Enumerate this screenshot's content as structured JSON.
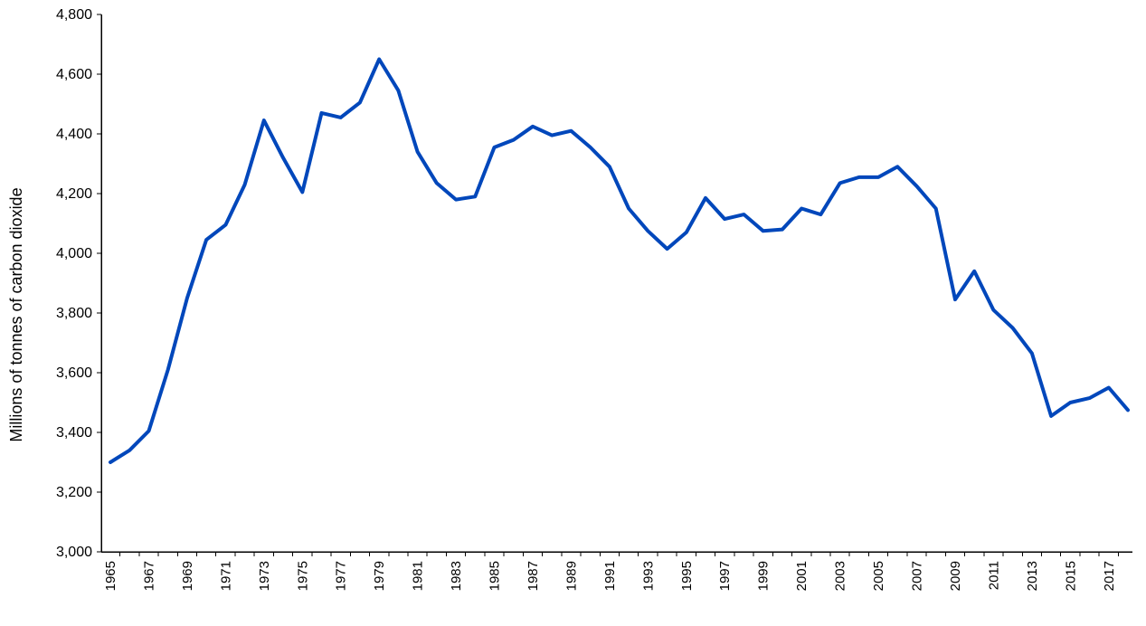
{
  "chart_data": {
    "type": "line",
    "title": "",
    "xlabel": "",
    "ylabel": "Millions of tonnes of carbon dioxide",
    "ylim": [
      3000,
      4800
    ],
    "yticks": [
      3000,
      3200,
      3400,
      3600,
      3800,
      4000,
      4200,
      4400,
      4600,
      4800
    ],
    "ytick_labels": [
      "3,000",
      "3,200",
      "3,400",
      "3,600",
      "3,800",
      "4,000",
      "4,200",
      "4,400",
      "4,600",
      "4,800"
    ],
    "xtick_labels": [
      "1965",
      "1967",
      "1969",
      "1971",
      "1973",
      "1975",
      "1977",
      "1979",
      "1981",
      "1983",
      "1985",
      "1987",
      "1989",
      "1991",
      "1993",
      "1995",
      "1997",
      "1999",
      "2001",
      "2003",
      "2005",
      "2007",
      "2009",
      "2011",
      "2013",
      "2015",
      "2017"
    ],
    "grid": false,
    "legend": "none",
    "line_color": "#0047BB",
    "x": [
      1965,
      1966,
      1967,
      1968,
      1969,
      1970,
      1971,
      1972,
      1973,
      1974,
      1975,
      1976,
      1977,
      1978,
      1979,
      1980,
      1981,
      1982,
      1983,
      1984,
      1985,
      1986,
      1987,
      1988,
      1989,
      1990,
      1991,
      1992,
      1993,
      1994,
      1995,
      1996,
      1997,
      1998,
      1999,
      2000,
      2001,
      2002,
      2003,
      2004,
      2005,
      2006,
      2007,
      2008,
      2009,
      2010,
      2011,
      2012,
      2013,
      2014,
      2015,
      2016,
      2017,
      2018
    ],
    "series": [
      {
        "values": [
          3300,
          3340,
          3405,
          3610,
          3850,
          4045,
          4095,
          4230,
          4445,
          4320,
          4205,
          4470,
          4455,
          4505,
          4650,
          4545,
          4340,
          4235,
          4180,
          4190,
          4355,
          4380,
          4425,
          4395,
          4410,
          4355,
          4290,
          4150,
          4075,
          4015,
          4070,
          4185,
          4115,
          4130,
          4075,
          4080,
          4150,
          4130,
          4235,
          4255,
          4255,
          4290,
          4225,
          4150,
          3845,
          3940,
          3810,
          3750,
          3665,
          3455,
          3500,
          3515,
          3550,
          3475
        ]
      }
    ]
  }
}
